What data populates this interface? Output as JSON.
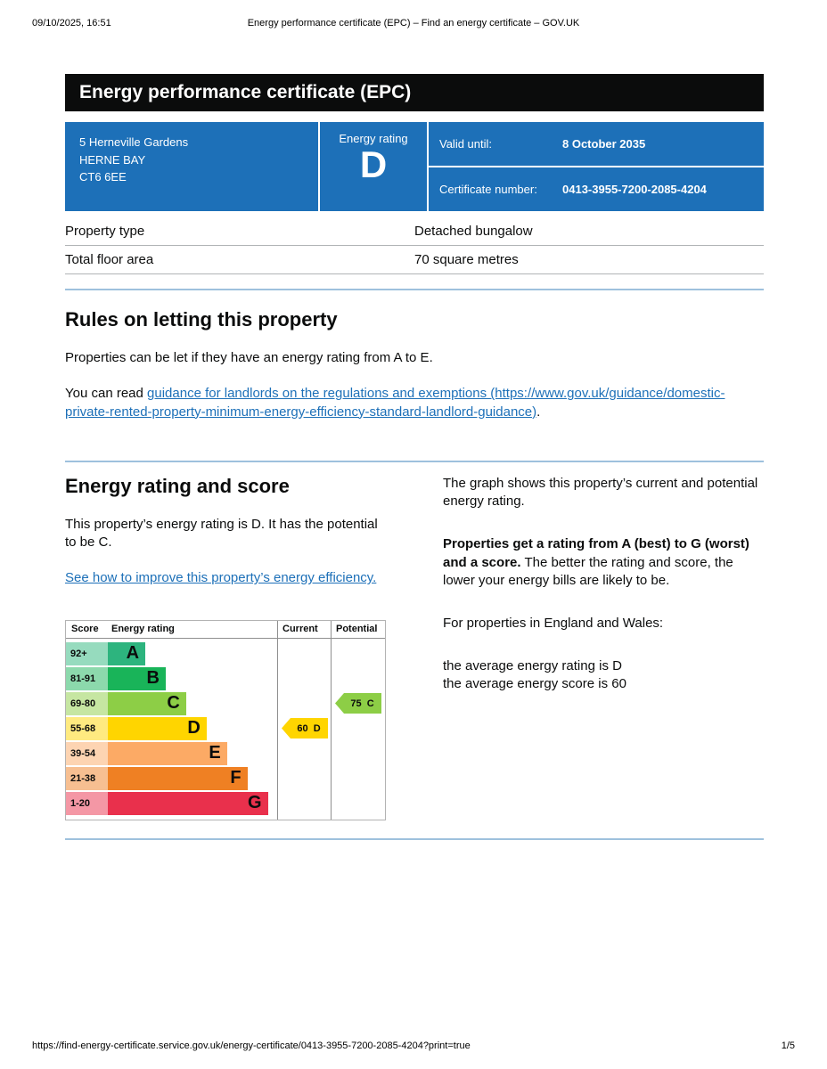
{
  "print_header": {
    "datetime": "09/10/2025, 16:51",
    "title": "Energy performance certificate (EPC) – Find an energy certificate – GOV.UK"
  },
  "banner": {
    "title": "Energy performance certificate (EPC)"
  },
  "summary": {
    "address_line1": "5 Herneville Gardens",
    "address_line2": "HERNE BAY",
    "address_line3": "CT6 6EE",
    "energy_rating_label": "Energy rating",
    "energy_rating": "D",
    "valid_until_label": "Valid until:",
    "valid_until": "8 October 2035",
    "certificate_number_label": "Certificate number:",
    "certificate_number": "0413-3955-7200-2085-4204"
  },
  "property_details": {
    "rows": [
      {
        "label": "Property type",
        "value": "Detached bungalow"
      },
      {
        "label": "Total floor area",
        "value": "70 square metres"
      }
    ]
  },
  "rules_section": {
    "heading": "Rules on letting this property",
    "paragraph1": "Properties can be let if they have an energy rating from A to E.",
    "paragraph2_prefix": "You can read ",
    "link_text": "guidance for landlords on the regulations and exemptions (https://www.gov.uk/guidance/domestic-private-rented-property-minimum-energy-efficiency-standard-landlord-guidance)",
    "paragraph2_suffix": "."
  },
  "rating_section": {
    "heading": "Energy rating and score",
    "paragraph1": "This property’s energy rating is D. It has the potential to be C.",
    "improve_link_text": "See how to improve this property’s energy efficiency.",
    "right": {
      "paragraph1": "The graph shows this property’s current and potential energy rating.",
      "paragraph2_bold": "Properties get a rating from A (best) to G (worst) and a score.",
      "paragraph2_rest": " The better the rating and score, the lower your energy bills are likely to be.",
      "paragraph3": "For properties in England and Wales:",
      "average_rating_line": "the average energy rating is D",
      "average_score_line": "the average energy score is 60"
    }
  },
  "chart_data": {
    "type": "epc-band-chart",
    "headers": {
      "score": "Score",
      "rating": "Energy rating",
      "current": "Current",
      "potential": "Potential"
    },
    "bands": [
      {
        "letter": "A",
        "score": "92+",
        "color": "#2db47e",
        "score_color": "#96dbbe",
        "bar_pct": 22
      },
      {
        "letter": "B",
        "score": "81-91",
        "color": "#19b459",
        "score_color": "#8cd9ac",
        "bar_pct": 34
      },
      {
        "letter": "C",
        "score": "69-80",
        "color": "#8dce46",
        "score_color": "#c6e6a2",
        "bar_pct": 46
      },
      {
        "letter": "D",
        "score": "55-68",
        "color": "#ffd500",
        "score_color": "#ffea80",
        "bar_pct": 58
      },
      {
        "letter": "E",
        "score": "39-54",
        "color": "#fcaa65",
        "score_color": "#fdd4b2",
        "bar_pct": 70
      },
      {
        "letter": "F",
        "score": "21-38",
        "color": "#ef8023",
        "score_color": "#f7bf91",
        "bar_pct": 82
      },
      {
        "letter": "G",
        "score": "1-20",
        "color": "#e9304c",
        "score_color": "#f497a5",
        "bar_pct": 94
      }
    ],
    "current": {
      "label": "60  D",
      "score": 60,
      "band": "D",
      "color": "#ffd500"
    },
    "potential": {
      "label": "75  C",
      "score": 75,
      "band": "C",
      "color": "#8dce46"
    }
  },
  "print_footer": {
    "url": "https://find-energy-certificate.service.gov.uk/energy-certificate/0413-3955-7200-2085-4204?print=true",
    "page": "1/5"
  }
}
